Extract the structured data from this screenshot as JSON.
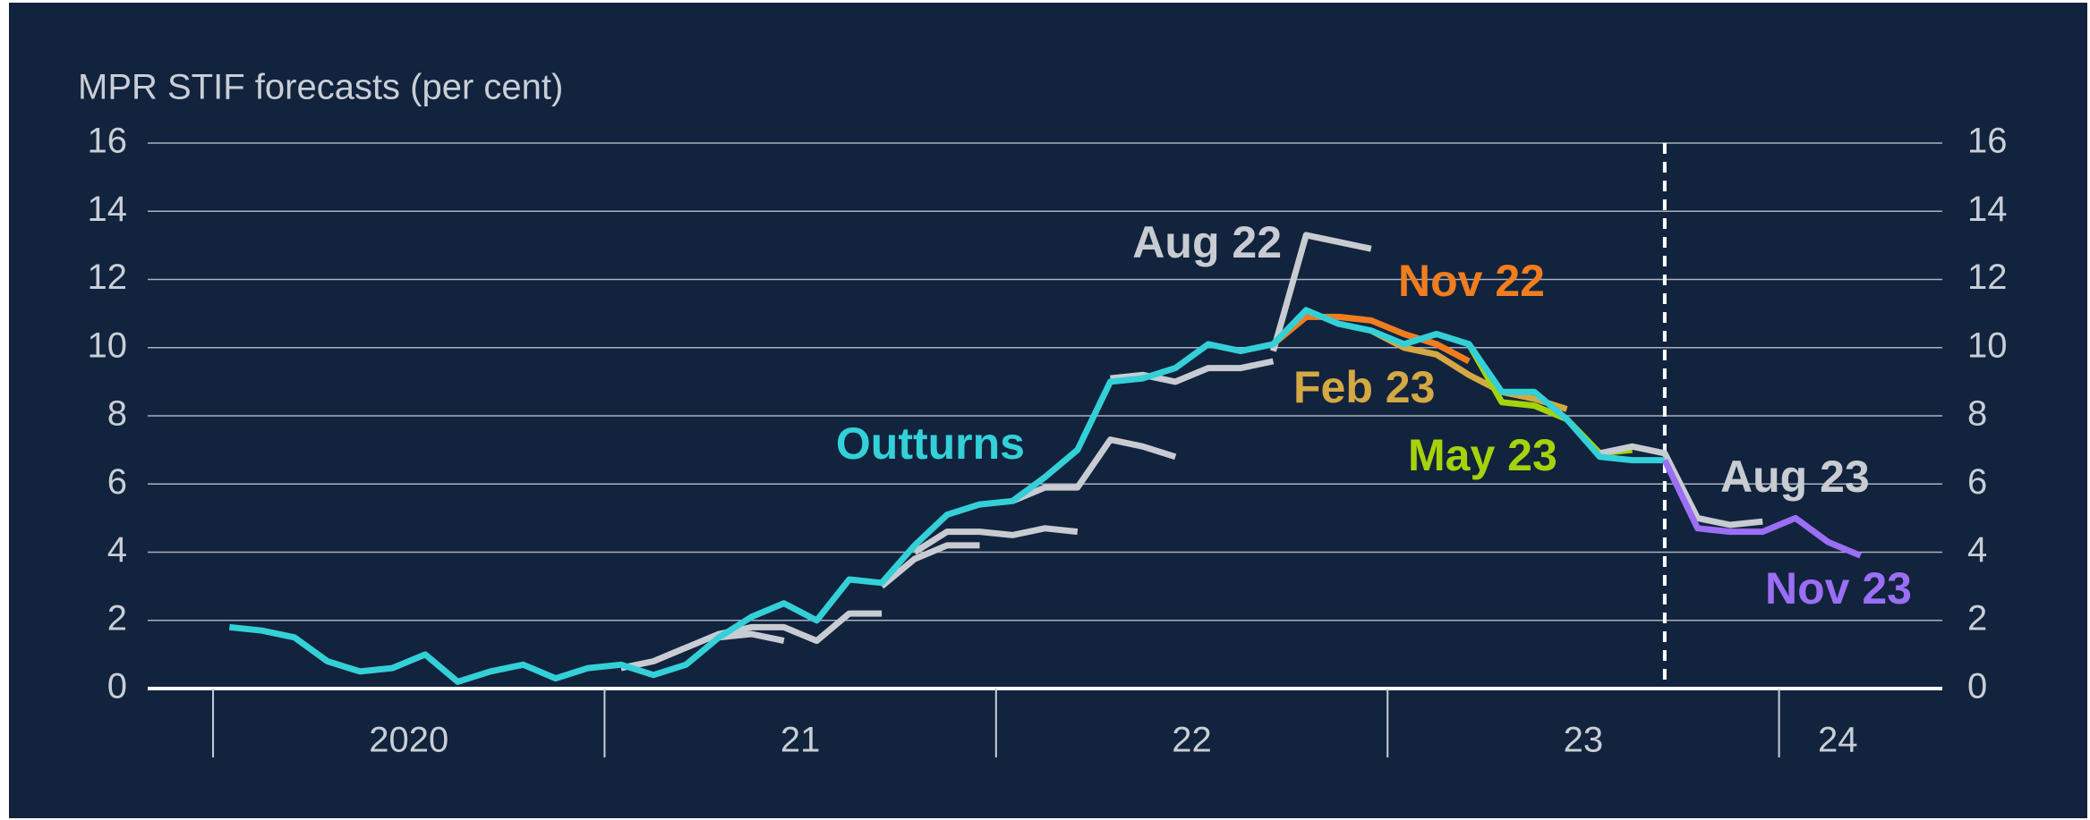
{
  "chart_data": {
    "type": "line",
    "title": "MPR STIF forecasts (per cent)",
    "xlim": [
      2019.833,
      2024.417
    ],
    "xticks": [
      {
        "value": 2020.5,
        "label": "2020"
      },
      {
        "value": 2021.5,
        "label": "21"
      },
      {
        "value": 2022.5,
        "label": "22"
      },
      {
        "value": 2023.5,
        "label": "23"
      },
      {
        "value": 2024.15,
        "label": "24"
      }
    ],
    "xdividers": [
      2020,
      2021,
      2022,
      2023,
      2024
    ],
    "forecast_line": 2023.708,
    "ylim": [
      0,
      16
    ],
    "yticks": [
      0,
      2,
      4,
      6,
      8,
      10,
      12,
      14,
      16
    ],
    "y2lim": [
      0,
      16
    ],
    "y2ticks": [
      0,
      2,
      4,
      6,
      8,
      10,
      12,
      14,
      16
    ],
    "grid": true,
    "series": [
      {
        "color": "#c8ccd2",
        "x": [
          2021.042,
          2021.125,
          2021.208,
          2021.292,
          2021.375,
          2021.458,
          2021.542,
          2021.625,
          2021.708
        ],
        "values": [
          0.6,
          0.8,
          1.2,
          1.6,
          1.8,
          1.8,
          1.4,
          2.2,
          2.2
        ]
      },
      {
        "color": "#c8ccd2",
        "x": [
          2021.292,
          2021.375,
          2021.458
        ],
        "values": [
          1.5,
          1.6,
          1.4
        ]
      },
      {
        "color": "#c8ccd2",
        "x": [
          2021.708,
          2021.792,
          2021.875,
          2021.958
        ],
        "values": [
          3.0,
          3.8,
          4.2,
          4.2
        ]
      },
      {
        "color": "#c8ccd2",
        "x": [
          2021.792,
          2021.875,
          2021.958,
          2022.042,
          2022.125,
          2022.208
        ],
        "values": [
          4.0,
          4.6,
          4.6,
          4.5,
          4.7,
          4.6
        ]
      },
      {
        "color": "#c8ccd2",
        "x": [
          2022.042,
          2022.125,
          2022.208,
          2022.292,
          2022.375,
          2022.458
        ],
        "values": [
          5.5,
          5.9,
          5.9,
          7.3,
          7.1,
          6.8
        ]
      },
      {
        "color": "#c8ccd2",
        "x": [
          2022.292,
          2022.375,
          2022.458,
          2022.542,
          2022.625,
          2022.708
        ],
        "values": [
          9.1,
          9.2,
          9.0,
          9.4,
          9.4,
          9.6
        ]
      },
      {
        "name": "Aug 22",
        "color": "#c8ccd2",
        "x": [
          2022.708,
          2022.792,
          2022.875,
          2022.958
        ],
        "values": [
          9.9,
          13.3,
          13.1,
          12.9
        ]
      },
      {
        "name": "Nov 22",
        "color": "#f07d1e",
        "x": [
          2022.708,
          2022.792,
          2022.875,
          2022.958,
          2023.042,
          2023.125,
          2023.208
        ],
        "values": [
          10.1,
          10.9,
          10.9,
          10.8,
          10.4,
          10.1,
          9.6
        ]
      },
      {
        "name": "Feb 23",
        "color": "#d4a843",
        "x": [
          2022.958,
          2023.042,
          2023.125,
          2023.208,
          2023.292,
          2023.375,
          2023.458
        ],
        "values": [
          10.5,
          10.0,
          9.8,
          9.2,
          8.7,
          8.5,
          8.2
        ]
      },
      {
        "name": "May 23",
        "color": "#a5d20b",
        "x": [
          2023.208,
          2023.292,
          2023.375,
          2023.458,
          2023.542,
          2023.625
        ],
        "values": [
          10.1,
          8.4,
          8.3,
          7.9,
          6.9,
          7.0
        ]
      },
      {
        "name": "Aug 23",
        "color": "#c8ccd2",
        "x": [
          2023.542,
          2023.625,
          2023.708,
          2023.792,
          2023.875,
          2023.958
        ],
        "values": [
          6.9,
          7.1,
          6.9,
          5.0,
          4.8,
          4.9
        ]
      },
      {
        "name": "Outturns",
        "color": "#33d0d8",
        "x": [
          2020.042,
          2020.125,
          2020.208,
          2020.292,
          2020.375,
          2020.458,
          2020.542,
          2020.625,
          2020.708,
          2020.792,
          2020.875,
          2020.958,
          2021.042,
          2021.125,
          2021.208,
          2021.292,
          2021.375,
          2021.458,
          2021.542,
          2021.625,
          2021.708,
          2021.792,
          2021.875,
          2021.958,
          2022.042,
          2022.125,
          2022.208,
          2022.292,
          2022.375,
          2022.458,
          2022.542,
          2022.625,
          2022.708,
          2022.792,
          2022.875,
          2022.958,
          2023.042,
          2023.125,
          2023.208,
          2023.292,
          2023.375,
          2023.458,
          2023.542,
          2023.625,
          2023.708
        ],
        "values": [
          1.8,
          1.7,
          1.5,
          0.8,
          0.5,
          0.6,
          1.0,
          0.2,
          0.5,
          0.7,
          0.3,
          0.6,
          0.7,
          0.4,
          0.7,
          1.5,
          2.1,
          2.5,
          2.0,
          3.2,
          3.1,
          4.2,
          5.1,
          5.4,
          5.5,
          6.2,
          7.0,
          9.0,
          9.1,
          9.4,
          10.1,
          9.9,
          10.1,
          11.1,
          10.7,
          10.5,
          10.1,
          10.4,
          10.1,
          8.7,
          8.7,
          7.9,
          6.8,
          6.7,
          6.7
        ]
      },
      {
        "name": "Nov 23",
        "color": "#9b6ef5",
        "x": [
          2023.708,
          2023.792,
          2023.875,
          2023.958,
          2024.042,
          2024.125,
          2024.208
        ],
        "values": [
          6.7,
          4.7,
          4.6,
          4.6,
          5.0,
          4.3,
          3.9
        ]
      }
    ]
  }
}
